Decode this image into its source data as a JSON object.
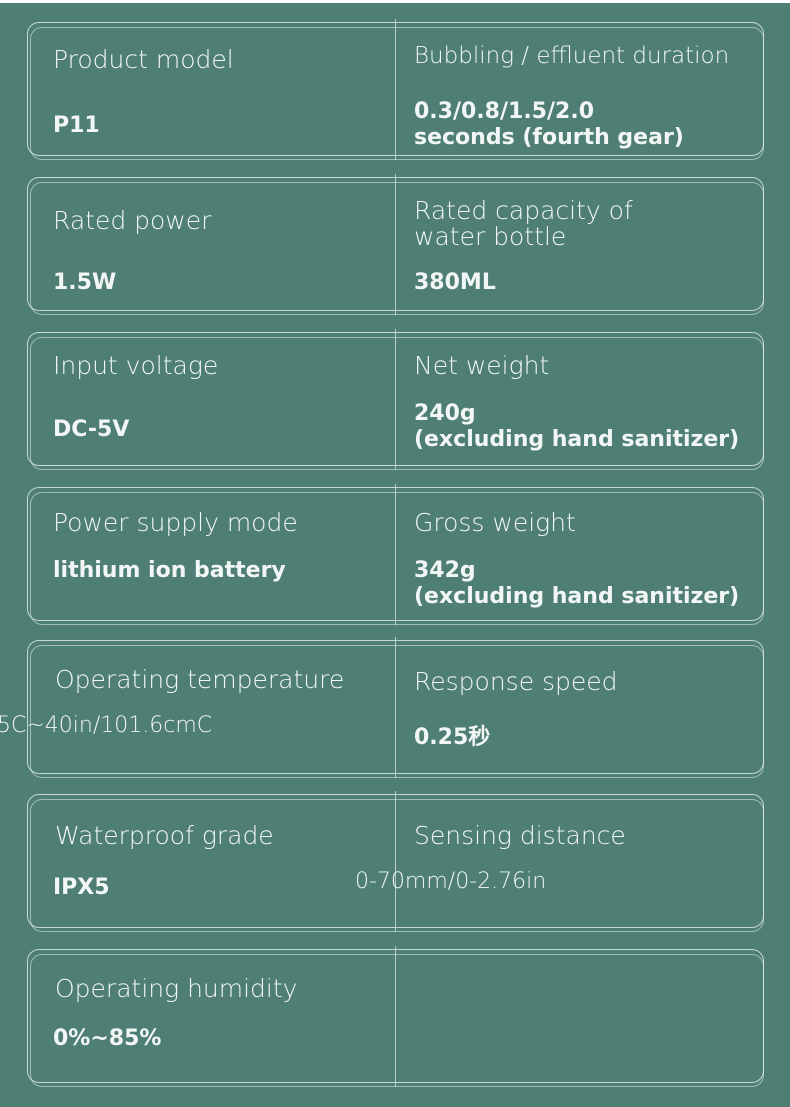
{
  "specs": [
    {
      "left_label": "Product model",
      "left_value": "P11",
      "right_label": "Bubbling / effluent duration",
      "right_value": "0.3/0.8/1.5/2.0\nseconds (fourth gear)"
    },
    {
      "left_label": "Rated power",
      "left_value": "1.5W",
      "right_label": "Rated capacity of\nwater bottle",
      "right_value": "380ML"
    },
    {
      "left_label": "Input voltage",
      "left_value": "DC-5V",
      "right_label": "Net weight",
      "right_value": "240g\n(excluding hand sanitizer)"
    },
    {
      "left_label": "Power supply mode",
      "left_value": "lithium ion battery",
      "right_label": "Gross weight",
      "right_value": "342g\n(excluding hand sanitizer)"
    },
    {
      "left_label": "Operating temperature",
      "left_value": "5C~40in/101.6cmC",
      "right_label": "Response speed",
      "right_value": "0.25秒"
    },
    {
      "left_label": "Waterproof grade",
      "left_value": "IPX5",
      "right_label": "Sensing distance",
      "right_value": "0-70mm/0-2.76in"
    },
    {
      "left_label": "Operating humidity",
      "left_value": "0%~85%",
      "right_label": "",
      "right_value": ""
    }
  ]
}
